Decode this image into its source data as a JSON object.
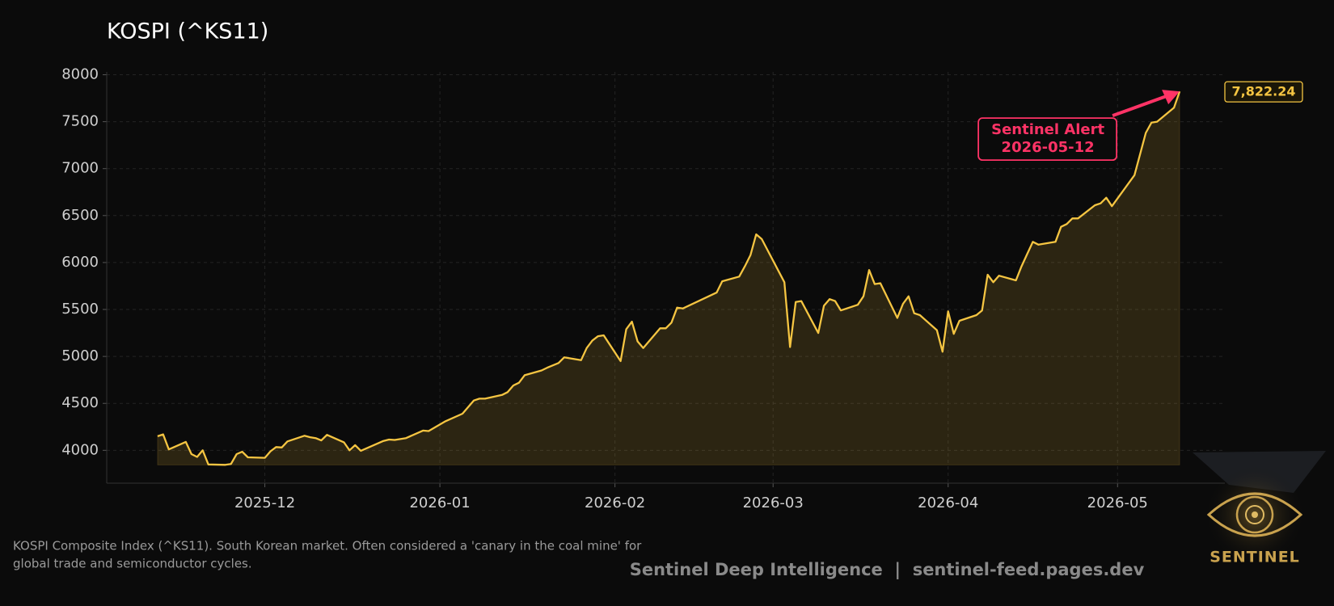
{
  "chart_data": {
    "type": "line",
    "title": "KOSPI (^KS11)",
    "x": [
      "2025-11-12",
      "2025-11-13",
      "2025-11-14",
      "2025-11-17",
      "2025-11-18",
      "2025-11-19",
      "2025-11-20",
      "2025-11-21",
      "2025-11-24",
      "2025-11-25",
      "2025-11-26",
      "2025-11-27",
      "2025-11-28",
      "2025-12-01",
      "2025-12-02",
      "2025-12-03",
      "2025-12-04",
      "2025-12-05",
      "2025-12-08",
      "2025-12-09",
      "2025-12-10",
      "2025-12-11",
      "2025-12-12",
      "2025-12-15",
      "2025-12-16",
      "2025-12-17",
      "2025-12-18",
      "2025-12-22",
      "2025-12-23",
      "2025-12-24",
      "2025-12-26",
      "2025-12-29",
      "2025-12-30",
      "2026-01-02",
      "2026-01-05",
      "2026-01-06",
      "2026-01-07",
      "2026-01-08",
      "2026-01-09",
      "2026-01-12",
      "2026-01-13",
      "2026-01-14",
      "2026-01-15",
      "2026-01-16",
      "2026-01-19",
      "2026-01-20",
      "2026-01-21",
      "2026-01-22",
      "2026-01-23",
      "2026-01-26",
      "2026-01-27",
      "2026-01-28",
      "2026-01-29",
      "2026-01-30",
      "2026-02-02",
      "2026-02-03",
      "2026-02-04",
      "2026-02-05",
      "2026-02-06",
      "2026-02-09",
      "2026-02-10",
      "2026-02-11",
      "2026-02-12",
      "2026-02-13",
      "2026-02-19",
      "2026-02-20",
      "2026-02-23",
      "2026-02-24",
      "2026-02-25",
      "2026-02-26",
      "2026-02-27",
      "2026-03-03",
      "2026-03-04",
      "2026-03-05",
      "2026-03-06",
      "2026-03-09",
      "2026-03-10",
      "2026-03-11",
      "2026-03-12",
      "2026-03-13",
      "2026-03-16",
      "2026-03-17",
      "2026-03-18",
      "2026-03-19",
      "2026-03-20",
      "2026-03-23",
      "2026-03-24",
      "2026-03-25",
      "2026-03-26",
      "2026-03-27",
      "2026-03-30",
      "2026-03-31",
      "2026-04-01",
      "2026-04-02",
      "2026-04-03",
      "2026-04-06",
      "2026-04-07",
      "2026-04-08",
      "2026-04-09",
      "2026-04-10",
      "2026-04-13",
      "2026-04-14",
      "2026-04-15",
      "2026-04-16",
      "2026-04-17",
      "2026-04-20",
      "2026-04-21",
      "2026-04-22",
      "2026-04-23",
      "2026-04-24",
      "2026-04-27",
      "2026-04-28",
      "2026-04-29",
      "2026-04-30",
      "2026-05-04",
      "2026-05-06",
      "2026-05-07",
      "2026-05-08",
      "2026-05-11",
      "2026-05-12"
    ],
    "values": [
      4150,
      4170,
      4010,
      4090,
      3960,
      3930,
      4000,
      3850,
      3845,
      3855,
      3960,
      3985,
      3925,
      3920,
      3990,
      4035,
      4030,
      4095,
      4155,
      4140,
      4130,
      4105,
      4165,
      4085,
      4000,
      4055,
      3995,
      4100,
      4115,
      4110,
      4130,
      4210,
      4205,
      4310,
      4390,
      4460,
      4530,
      4550,
      4550,
      4590,
      4620,
      4690,
      4720,
      4800,
      4850,
      4880,
      4905,
      4930,
      4990,
      4960,
      5090,
      5170,
      5215,
      5225,
      4950,
      5290,
      5370,
      5160,
      5090,
      5300,
      5300,
      5360,
      5520,
      5510,
      5680,
      5800,
      5850,
      5960,
      6080,
      6300,
      6250,
      5790,
      5100,
      5580,
      5590,
      5250,
      5540,
      5610,
      5590,
      5490,
      5550,
      5640,
      5920,
      5770,
      5780,
      5410,
      5560,
      5640,
      5460,
      5440,
      5280,
      5050,
      5480,
      5240,
      5380,
      5440,
      5490,
      5870,
      5790,
      5860,
      5810,
      5960,
      6090,
      6220,
      6190,
      6220,
      6380,
      6410,
      6470,
      6470,
      6610,
      6630,
      6690,
      6600,
      6930,
      7380,
      7490,
      7500,
      7650,
      7822.24
    ],
    "color": "#f5c542",
    "xlim": [
      "2025-11-03",
      "2026-05-20"
    ],
    "xticks": [
      "2025-12",
      "2026-01",
      "2026-02",
      "2026-03",
      "2026-04",
      "2026-05"
    ],
    "ylim": [
      3650,
      8030
    ],
    "yticks": [
      4000,
      4500,
      5000,
      5500,
      6000,
      6500,
      7000,
      7500,
      8000
    ],
    "grid": true,
    "last_value_label": "7,822.24",
    "annotation": [
      "Sentinel Alert",
      "2026-05-12"
    ],
    "footnote": [
      "KOSPI Composite Index (^KS11). South Korean market. Often considered a 'canary in the coal mine' for",
      "global trade and semiconductor cycles."
    ],
    "credit": "Sentinel Deep Intelligence  |  sentinel-feed.pages.dev",
    "logo": "SENTINEL"
  }
}
